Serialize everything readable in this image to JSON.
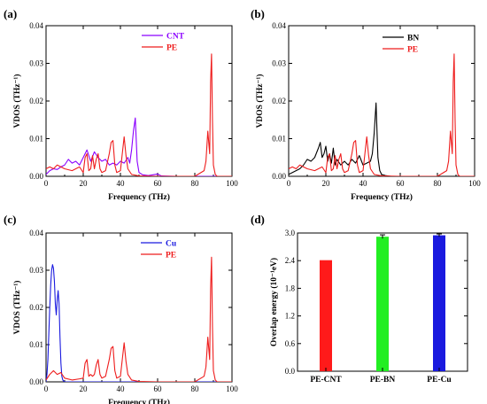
{
  "chart_data": [
    {
      "panel_label": "(a)",
      "type": "line",
      "xlabel": "Frequency (THz)",
      "ylabel": "VDOS (THz⁻¹)",
      "xlim": [
        0,
        100
      ],
      "ylim": [
        0,
        0.04
      ],
      "xticks": [
        "0",
        "20",
        "40",
        "60",
        "80",
        "100"
      ],
      "yticks": [
        "0.00",
        "0.01",
        "0.02",
        "0.03",
        "0.04"
      ],
      "legend_position": "top-right",
      "series": [
        {
          "name": "CNT",
          "color": "#8b00ff",
          "x": [
            0,
            2,
            4,
            6,
            8,
            10,
            12,
            14,
            16,
            18,
            20,
            22,
            24,
            26,
            28,
            30,
            32,
            34,
            36,
            38,
            40,
            42,
            44,
            45,
            46,
            47,
            48,
            49,
            50,
            52,
            55,
            60,
            62,
            70,
            100
          ],
          "y": [
            0.0005,
            0.0015,
            0.002,
            0.0018,
            0.0025,
            0.003,
            0.0045,
            0.0035,
            0.004,
            0.003,
            0.005,
            0.007,
            0.004,
            0.0065,
            0.005,
            0.004,
            0.0045,
            0.003,
            0.0035,
            0.003,
            0.004,
            0.0035,
            0.005,
            0.0035,
            0.007,
            0.012,
            0.0155,
            0.004,
            0.001,
            0.0004,
            0.0002,
            0.0006,
            0.0001,
            0.0,
            0.0
          ]
        },
        {
          "name": "PE",
          "color": "#ee1c1c",
          "x": [
            0,
            2,
            4,
            6,
            8,
            10,
            14,
            18,
            20,
            21,
            22,
            23,
            24,
            25,
            26,
            27,
            28,
            29,
            30,
            32,
            34,
            35,
            36,
            37,
            38,
            40,
            41,
            42,
            43,
            44,
            46,
            50,
            60,
            70,
            80,
            85,
            86,
            87,
            88,
            88.5,
            89,
            89.5,
            90,
            91,
            92,
            100
          ],
          "y": [
            0.002,
            0.0025,
            0.002,
            0.003,
            0.0025,
            0.002,
            0.0015,
            0.0025,
            0.001,
            0.005,
            0.006,
            0.0015,
            0.002,
            0.0055,
            0.002,
            0.0045,
            0.006,
            0.002,
            0.001,
            0.0015,
            0.006,
            0.009,
            0.0095,
            0.003,
            0.001,
            0.0015,
            0.006,
            0.0105,
            0.0055,
            0.002,
            0.0005,
            0.0001,
            0.0,
            0.0,
            0.0,
            0.0015,
            0.004,
            0.012,
            0.006,
            0.025,
            0.0325,
            0.015,
            0.003,
            0.0005,
            0.0,
            0.0
          ]
        }
      ]
    },
    {
      "panel_label": "(b)",
      "type": "line",
      "xlabel": "Frequency (THz)",
      "ylabel": "VDOS (THz⁻¹)",
      "xlim": [
        0,
        100
      ],
      "ylim": [
        0,
        0.04
      ],
      "xticks": [
        "0",
        "20",
        "40",
        "60",
        "80",
        "100"
      ],
      "yticks": [
        "0.00",
        "0.01",
        "0.02",
        "0.03",
        "0.04"
      ],
      "legend_position": "top-right",
      "series": [
        {
          "name": "BN",
          "color": "#000000",
          "x": [
            0,
            2,
            4,
            6,
            8,
            10,
            12,
            14,
            16,
            17,
            18,
            19,
            20,
            21,
            22,
            23,
            24,
            25,
            26,
            28,
            30,
            32,
            34,
            36,
            38,
            40,
            42,
            44,
            45,
            46,
            47,
            48,
            49,
            50,
            52,
            55,
            60,
            100
          ],
          "y": [
            0.0005,
            0.001,
            0.0015,
            0.002,
            0.003,
            0.0045,
            0.004,
            0.005,
            0.0075,
            0.009,
            0.005,
            0.006,
            0.008,
            0.004,
            0.006,
            0.0035,
            0.0075,
            0.003,
            0.0045,
            0.003,
            0.004,
            0.003,
            0.0045,
            0.0035,
            0.0055,
            0.003,
            0.0035,
            0.004,
            0.006,
            0.0115,
            0.0195,
            0.005,
            0.0015,
            0.0005,
            0.0002,
            0.0,
            0.0,
            0.0
          ]
        },
        {
          "name": "PE",
          "color": "#ee1c1c",
          "x": [
            0,
            2,
            4,
            6,
            8,
            10,
            14,
            18,
            20,
            21,
            22,
            23,
            24,
            25,
            26,
            27,
            28,
            29,
            30,
            32,
            34,
            35,
            36,
            37,
            38,
            40,
            41,
            42,
            43,
            44,
            46,
            50,
            60,
            70,
            80,
            85,
            86,
            87,
            88,
            88.5,
            89,
            89.5,
            90,
            91,
            92,
            100
          ],
          "y": [
            0.002,
            0.0025,
            0.002,
            0.003,
            0.0025,
            0.002,
            0.0015,
            0.0025,
            0.001,
            0.005,
            0.006,
            0.0015,
            0.002,
            0.0055,
            0.002,
            0.0045,
            0.006,
            0.002,
            0.001,
            0.0015,
            0.006,
            0.009,
            0.0095,
            0.003,
            0.001,
            0.0015,
            0.006,
            0.0105,
            0.0055,
            0.002,
            0.0005,
            0.0001,
            0.0,
            0.0,
            0.0,
            0.0015,
            0.004,
            0.012,
            0.006,
            0.025,
            0.0325,
            0.015,
            0.003,
            0.0005,
            0.0,
            0.0
          ]
        }
      ]
    },
    {
      "panel_label": "(c)",
      "type": "line",
      "xlabel": "Frequency (THz)",
      "ylabel": "VDOS (THz⁻¹)",
      "xlim": [
        0,
        100
      ],
      "ylim": [
        0,
        0.04
      ],
      "xticks": [
        "0",
        "20",
        "40",
        "60",
        "80",
        "100"
      ],
      "yticks": [
        "0.00",
        "0.01",
        "0.02",
        "0.03",
        "0.04"
      ],
      "legend_position": "top-right",
      "series": [
        {
          "name": "Cu",
          "color": "#1a1adf",
          "x": [
            0,
            0.5,
            1,
            1.5,
            2,
            2.5,
            3,
            3.5,
            4,
            4.5,
            5,
            5.5,
            6,
            6.5,
            7,
            7.5,
            8,
            8.5,
            9,
            9.5,
            10,
            11,
            12,
            100
          ],
          "y": [
            0.0,
            0.002,
            0.006,
            0.013,
            0.02,
            0.026,
            0.03,
            0.0315,
            0.0305,
            0.027,
            0.021,
            0.018,
            0.022,
            0.0245,
            0.021,
            0.012,
            0.005,
            0.0015,
            0.0005,
            0.0002,
            0.0,
            0.0,
            0.0,
            0.0
          ]
        },
        {
          "name": "PE",
          "color": "#ee1c1c",
          "x": [
            0,
            2,
            4,
            6,
            8,
            10,
            14,
            18,
            20,
            21,
            22,
            23,
            24,
            25,
            26,
            27,
            28,
            29,
            30,
            32,
            34,
            35,
            36,
            37,
            38,
            40,
            41,
            42,
            43,
            44,
            46,
            50,
            60,
            70,
            80,
            85,
            86,
            87,
            88,
            88.5,
            89,
            89.5,
            90,
            91,
            92,
            100
          ],
          "y": [
            0.0005,
            0.002,
            0.003,
            0.002,
            0.0025,
            0.001,
            0.0005,
            0.0008,
            0.001,
            0.005,
            0.006,
            0.0015,
            0.002,
            0.0015,
            0.002,
            0.0045,
            0.006,
            0.002,
            0.001,
            0.0015,
            0.006,
            0.009,
            0.0095,
            0.003,
            0.001,
            0.0015,
            0.006,
            0.0105,
            0.0055,
            0.002,
            0.0005,
            0.0001,
            0.0,
            0.0,
            0.0,
            0.0015,
            0.004,
            0.012,
            0.006,
            0.025,
            0.0335,
            0.015,
            0.003,
            0.0005,
            0.0,
            0.0
          ]
        }
      ]
    },
    {
      "panel_label": "(d)",
      "type": "bar",
      "ylabel": "Overlap energy (10⁻¹eV)",
      "ylim": [
        0,
        3.0
      ],
      "yticks": [
        "0.0",
        "0.6",
        "1.2",
        "1.8",
        "2.4",
        "3.0"
      ],
      "categories": [
        "PE-CNT",
        "PE-BN",
        "PE-Cu"
      ],
      "values": [
        2.41,
        2.92,
        2.95
      ],
      "errors": [
        0.0,
        0.04,
        0.03
      ],
      "colors": [
        "#ff1a1a",
        "#22ee22",
        "#1a1adf"
      ]
    }
  ]
}
